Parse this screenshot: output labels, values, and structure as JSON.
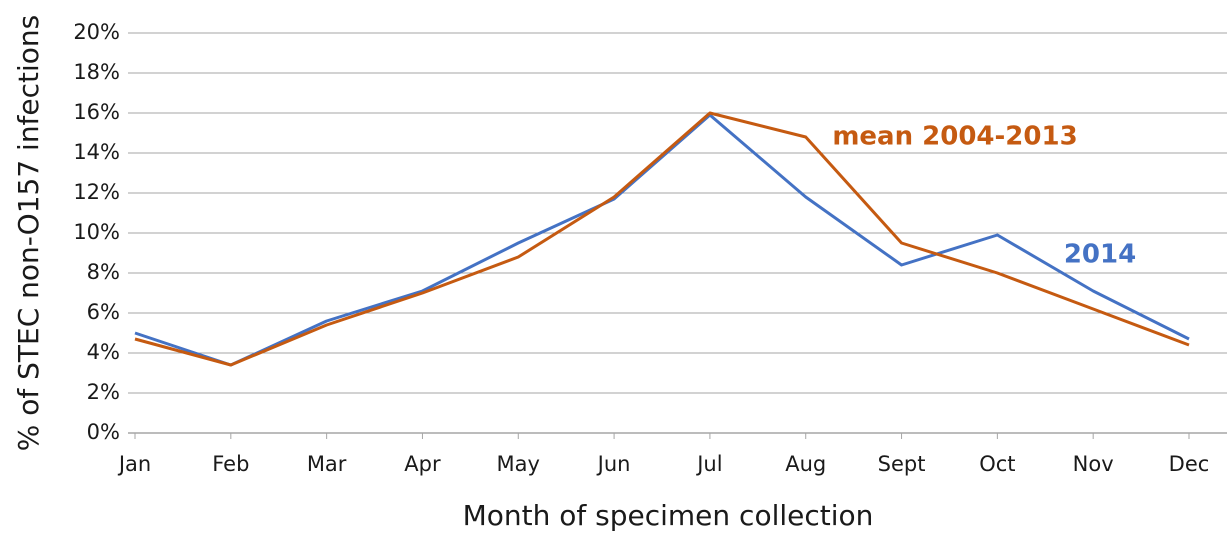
{
  "chart_data": {
    "type": "line",
    "x_label": "Month of specimen collection",
    "y_label": "% of STEC  non-O157 infections",
    "categories": [
      "Jan",
      "Feb",
      "Mar",
      "Apr",
      "May",
      "Jun",
      "Jul",
      "Aug",
      "Sept",
      "Oct",
      "Nov",
      "Dec"
    ],
    "series": [
      {
        "name": "2014",
        "color": "#4472c4",
        "values": [
          5.0,
          3.4,
          5.6,
          7.1,
          9.5,
          11.7,
          15.9,
          11.8,
          8.4,
          9.9,
          7.1,
          4.7
        ]
      },
      {
        "name": "mean 2004-2013",
        "color": "#c55a11",
        "values": [
          4.7,
          3.4,
          5.4,
          7.0,
          8.8,
          11.8,
          16.0,
          14.8,
          9.5,
          8.0,
          6.2,
          4.4
        ]
      }
    ],
    "ylim": [
      0,
      20
    ],
    "yticks": [
      {
        "value": 0,
        "label": "0%"
      },
      {
        "value": 2,
        "label": "2%"
      },
      {
        "value": 4,
        "label": "4%"
      },
      {
        "value": 6,
        "label": "6%"
      },
      {
        "value": 8,
        "label": "8%"
      },
      {
        "value": 10,
        "label": "10%"
      },
      {
        "value": 12,
        "label": "12%"
      },
      {
        "value": 14,
        "label": "14%"
      },
      {
        "value": 16,
        "label": "16%"
      },
      {
        "value": 18,
        "label": "18%"
      },
      {
        "value": 20,
        "label": "20%"
      }
    ],
    "grid": true
  }
}
